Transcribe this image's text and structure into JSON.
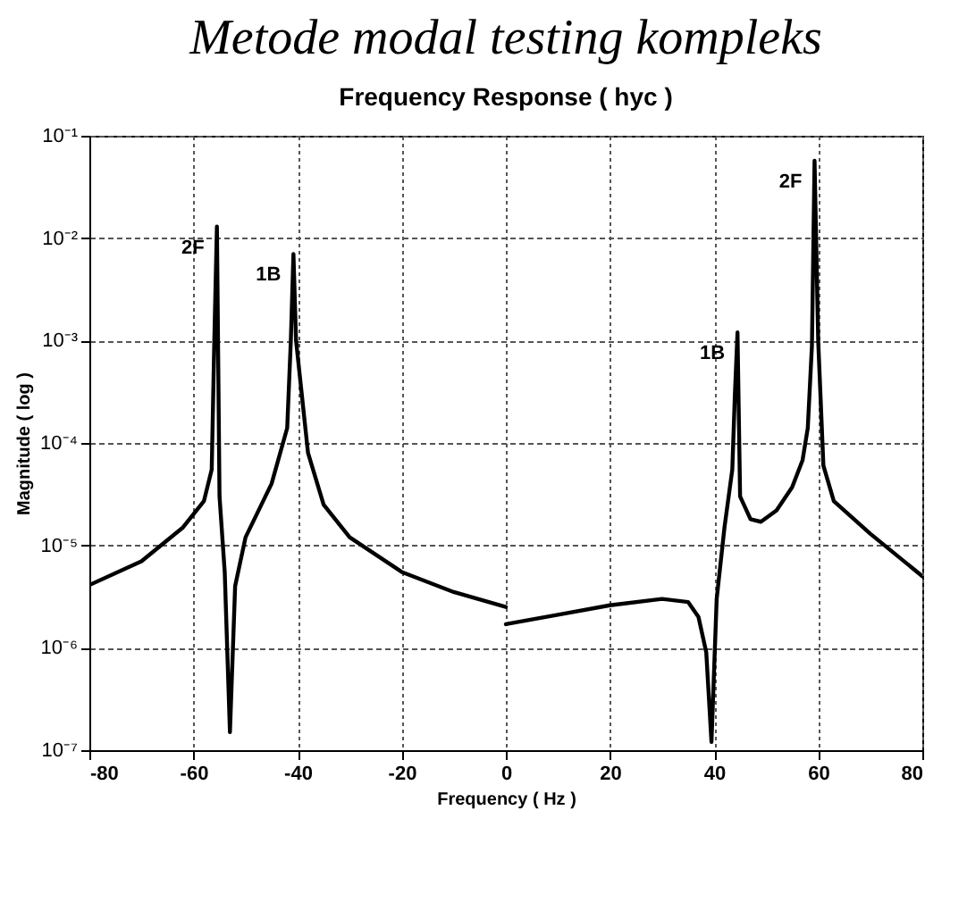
{
  "chart_data": {
    "type": "line",
    "title": "Metode modal testing kompleks",
    "subtitle": "Frequency Response ( hyc )",
    "xlabel": "Frequency ( Hz )",
    "ylabel": "Magnitude ( log )",
    "log": "y",
    "grid": true,
    "xlim": [
      -80,
      80
    ],
    "xticks": [
      -80,
      -60,
      -40,
      -20,
      0,
      20,
      40,
      60,
      80
    ],
    "ylim": [
      1e-07,
      0.1
    ],
    "yticks": [
      {
        "value": 1e-07,
        "label": "10⁻⁷"
      },
      {
        "value": 1e-06,
        "label": "10⁻⁶"
      },
      {
        "value": 1e-05,
        "label": "10⁻⁵"
      },
      {
        "value": 0.0001,
        "label": "10⁻⁴"
      },
      {
        "value": 0.001,
        "label": "10⁻³"
      },
      {
        "value": 0.01,
        "label": "10⁻²"
      },
      {
        "value": 0.1,
        "label": "10⁻¹"
      }
    ],
    "series": [
      {
        "color": "#000000",
        "x": [
          -80,
          -70,
          -62,
          -58,
          -56.5,
          -56,
          -55.5,
          -55,
          -54,
          -53,
          -52,
          -50,
          -45,
          -42,
          -41.3,
          -40.8,
          -40.3,
          -38,
          -35,
          -30,
          -20,
          -10,
          0
        ],
        "values": [
          4.1e-06,
          7e-06,
          1.5e-05,
          2.7e-05,
          5.5e-05,
          0.001,
          0.013,
          3e-05,
          5.5e-06,
          1.5e-07,
          4e-06,
          1.2e-05,
          4e-05,
          0.00014,
          0.001,
          0.007,
          0.001,
          8e-05,
          2.5e-05,
          1.2e-05,
          5.5e-06,
          3.5e-06,
          2.5e-06
        ]
      },
      {
        "color": "#000000",
        "x": [
          0,
          10,
          20,
          30,
          35,
          37,
          38.5,
          39.5,
          40.5,
          42,
          43.5,
          44,
          44.5,
          45,
          47,
          49,
          52,
          55,
          57,
          58,
          58.8,
          59.3,
          60,
          61,
          63,
          70,
          80
        ],
        "values": [
          1.7e-06,
          2.1e-06,
          2.6e-06,
          3e-06,
          2.8e-06,
          2e-06,
          9e-07,
          1.2e-07,
          3e-06,
          1.5e-05,
          5.5e-05,
          0.0003,
          0.0012,
          3e-05,
          1.8e-05,
          1.7e-05,
          2.2e-05,
          3.7e-05,
          6.8e-05,
          0.00014,
          0.0009,
          0.057,
          0.001,
          6e-05,
          2.7e-05,
          1.3e-05,
          5e-06
        ]
      }
    ],
    "annotations": [
      "2F",
      "1B",
      "1B",
      "2F"
    ]
  }
}
